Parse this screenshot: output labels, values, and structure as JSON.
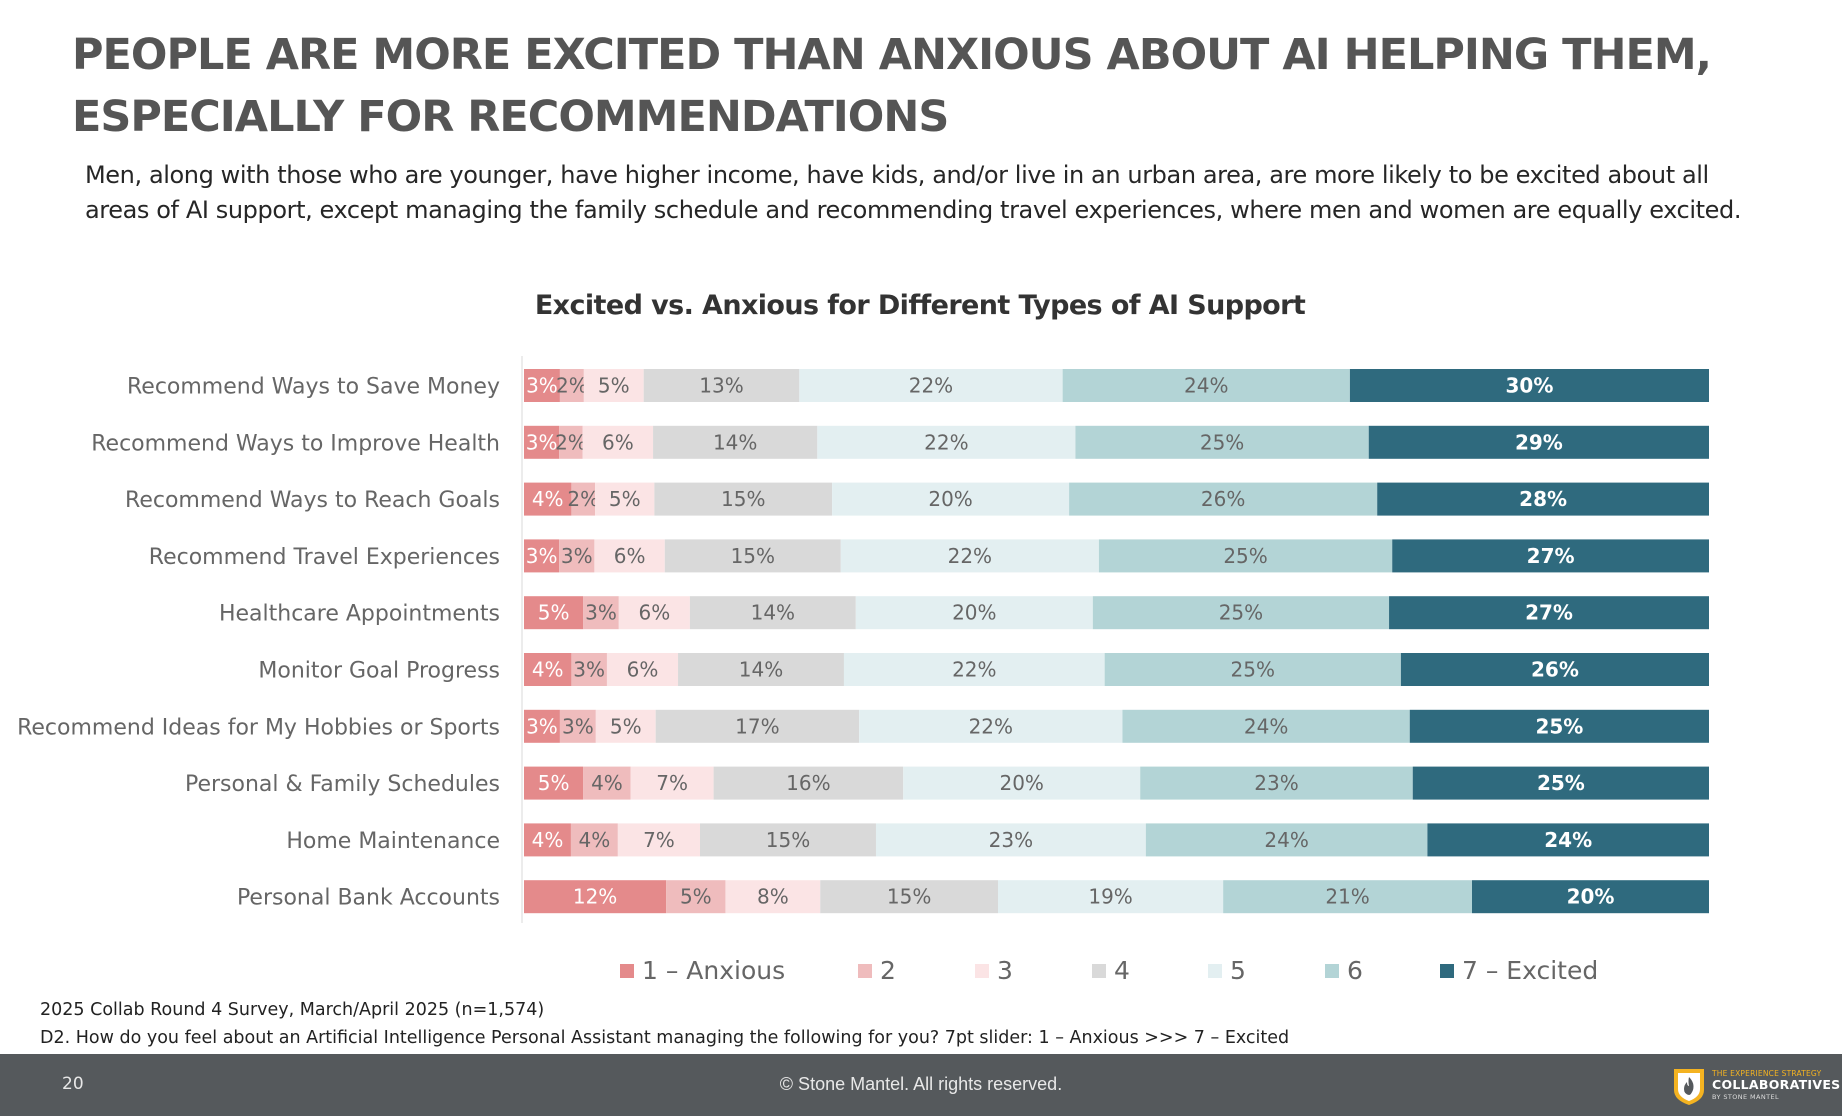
{
  "header": {
    "title_line1": "PEOPLE ARE MORE EXCITED THAN ANXIOUS ABOUT AI HELPING THEM,",
    "title_line2": "ESPECIALLY FOR RECOMMENDATIONS",
    "subtitle_line1": "Men, along with those who are younger, have higher income, have kids, and/or live in an urban area, are more likely to be excited about all",
    "subtitle_line2": "areas of AI support, except managing the family schedule and recommending travel experiences, where men and women are equally excited."
  },
  "chart_data": {
    "type": "bar",
    "orientation": "horizontal",
    "stacked": true,
    "title": "Excited vs. Anxious for Different Types of AI Support",
    "categories": [
      "Recommend Ways to Save Money",
      "Recommend Ways to Improve Health",
      "Recommend Ways to Reach Goals",
      "Recommend Travel Experiences",
      "Healthcare Appointments",
      "Monitor Goal Progress",
      "Recommend Ideas for My Hobbies or Sports",
      "Personal & Family Schedules",
      "Home Maintenance",
      "Personal Bank Accounts"
    ],
    "series": [
      {
        "name": "1 – Anxious",
        "color": "#e48a8b",
        "label_color": "#ffffff",
        "values": [
          3,
          3,
          4,
          3,
          5,
          4,
          3,
          5,
          4,
          12
        ]
      },
      {
        "name": "2",
        "color": "#efbcbd",
        "label_color": "#666666",
        "values": [
          2,
          2,
          2,
          3,
          3,
          3,
          3,
          4,
          4,
          5
        ]
      },
      {
        "name": "3",
        "color": "#fbe4e5",
        "label_color": "#666666",
        "values": [
          5,
          6,
          5,
          6,
          6,
          6,
          5,
          7,
          7,
          8
        ]
      },
      {
        "name": "4",
        "color": "#d9d9d9",
        "label_color": "#666666",
        "values": [
          13,
          14,
          15,
          15,
          14,
          14,
          17,
          16,
          15,
          15
        ]
      },
      {
        "name": "5",
        "color": "#e3eff1",
        "label_color": "#666666",
        "values": [
          22,
          22,
          20,
          22,
          20,
          22,
          22,
          20,
          23,
          19
        ]
      },
      {
        "name": "6",
        "color": "#b3d4d6",
        "label_color": "#666666",
        "values": [
          24,
          25,
          26,
          25,
          25,
          25,
          24,
          23,
          24,
          21
        ]
      },
      {
        "name": "7 – Excited",
        "color": "#2f6a7e",
        "label_color": "#ffffff",
        "values": [
          30,
          29,
          28,
          27,
          27,
          26,
          25,
          25,
          24,
          20
        ]
      }
    ],
    "value_suffix": "%",
    "legend_position": "bottom",
    "grid": false
  },
  "notes": {
    "source": "2025 Collab Round 4 Survey, March/April 2025 (n=1,574)",
    "question": "D2. How do you feel about an Artificial Intelligence Personal Assistant managing the following for you?     7pt slider: 1 – Anxious >>> 7 – Excited"
  },
  "footer": {
    "page_number": "20",
    "copyright": "© Stone Mantel. All rights reserved.",
    "brand_top": "THE EXPERIENCE STRATEGY",
    "brand_main": "COLLABORATIVES",
    "brand_sub": "BY STONE MANTEL",
    "brand_color": "#f4b321"
  }
}
